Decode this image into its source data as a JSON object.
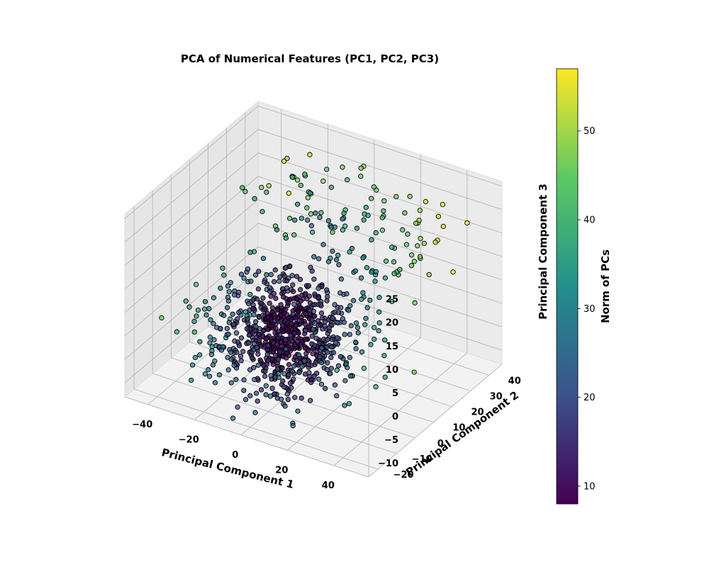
{
  "chart_data": {
    "type": "scatter",
    "title": "PCA of Numerical Features (PC1, PC2, PC3)",
    "xlabel": "Principal Component 1",
    "ylabel": "Principal Component 2",
    "zlabel": "Principal Component 3",
    "colorbar_label": "Norm of PCs",
    "xlim": [
      -50,
      55
    ],
    "ylim": [
      -25,
      47
    ],
    "zlim": [
      -13,
      26
    ],
    "x_ticks": [
      "−40",
      "−20",
      "0",
      "20",
      "40"
    ],
    "y_ticks": [
      "−20",
      "−10",
      "0",
      "10",
      "20",
      "30",
      "40"
    ],
    "z_ticks": [
      "−10",
      "−5",
      "0",
      "5",
      "10",
      "15",
      "20",
      "25"
    ],
    "colorbar_ticks": [
      "10",
      "20",
      "30",
      "40",
      "50"
    ],
    "colorbar_range": [
      8,
      57
    ],
    "colormap": [
      "#440154",
      "#3b528b",
      "#21908c",
      "#5dc963",
      "#fde725"
    ],
    "grid": true,
    "point_count": 1000,
    "pc1_std": 14,
    "pc2_std": 10,
    "pc3_std": 5
  }
}
